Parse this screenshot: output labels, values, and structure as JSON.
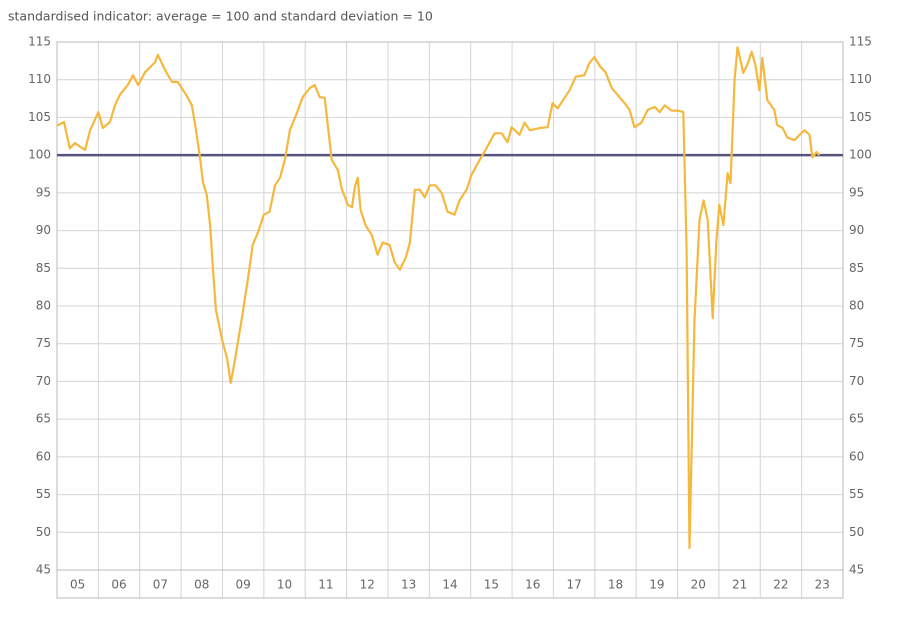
{
  "chart_data": {
    "type": "line",
    "title": "standardised indicator: average = 100 and standard deviation = 10",
    "xlim": [
      5,
      24
    ],
    "xticks": [
      {
        "value": 5.5,
        "label": "05"
      },
      {
        "value": 6.5,
        "label": "06"
      },
      {
        "value": 7.5,
        "label": "07"
      },
      {
        "value": 8.5,
        "label": "08"
      },
      {
        "value": 9.5,
        "label": "09"
      },
      {
        "value": 10.5,
        "label": "10"
      },
      {
        "value": 11.5,
        "label": "11"
      },
      {
        "value": 12.5,
        "label": "12"
      },
      {
        "value": 13.5,
        "label": "13"
      },
      {
        "value": 14.5,
        "label": "14"
      },
      {
        "value": 15.5,
        "label": "15"
      },
      {
        "value": 16.5,
        "label": "16"
      },
      {
        "value": 17.5,
        "label": "17"
      },
      {
        "value": 18.5,
        "label": "18"
      },
      {
        "value": 19.5,
        "label": "19"
      },
      {
        "value": 20.5,
        "label": "20"
      },
      {
        "value": 21.5,
        "label": "21"
      },
      {
        "value": 22.5,
        "label": "22"
      },
      {
        "value": 23.5,
        "label": "23"
      }
    ],
    "xgrid": [
      6,
      7,
      8,
      9,
      10,
      11,
      12,
      13,
      14,
      15,
      16,
      17,
      18,
      19,
      20,
      21,
      22,
      23
    ],
    "ylim": [
      45,
      115
    ],
    "yticks": [
      45,
      50,
      55,
      60,
      65,
      70,
      75,
      80,
      85,
      90,
      95,
      100,
      105,
      110,
      115
    ],
    "grid": true,
    "right_axis_labels": true,
    "reference_line": {
      "value": 100,
      "color": "#55557f"
    },
    "series": [
      {
        "color": "#f5b83d",
        "x": [
          5.0,
          5.17,
          5.31,
          5.43,
          5.68,
          5.8,
          6.0,
          6.11,
          6.28,
          6.4,
          6.52,
          6.71,
          6.84,
          6.96,
          7.13,
          7.37,
          7.44,
          7.61,
          7.78,
          7.92,
          8.12,
          8.26,
          8.36,
          8.45,
          8.53,
          8.62,
          8.7,
          8.77,
          8.84,
          8.99,
          9.11,
          9.2,
          9.3,
          9.47,
          9.61,
          9.73,
          9.86,
          10.0,
          10.14,
          10.27,
          10.39,
          10.51,
          10.63,
          10.8,
          10.94,
          11.11,
          11.23,
          11.35,
          11.47,
          11.64,
          11.79,
          11.88,
          12.03,
          12.13,
          12.2,
          12.27,
          12.34,
          12.46,
          12.61,
          12.75,
          12.87,
          13.04,
          13.16,
          13.29,
          13.43,
          13.53,
          13.65,
          13.77,
          13.89,
          14.01,
          14.15,
          14.3,
          14.44,
          14.61,
          14.73,
          14.9,
          15.02,
          15.22,
          15.36,
          15.46,
          15.58,
          15.75,
          15.89,
          15.99,
          16.18,
          16.3,
          16.43,
          16.67,
          16.86,
          16.98,
          17.1,
          17.27,
          17.39,
          17.54,
          17.75,
          17.87,
          17.99,
          18.12,
          18.26,
          18.41,
          18.55,
          18.72,
          18.84,
          18.96,
          19.13,
          19.28,
          19.45,
          19.57,
          19.69,
          19.86,
          20.0,
          20.14,
          20.22,
          20.29,
          20.41,
          20.53,
          20.63,
          20.73,
          20.85,
          20.94,
          21.01,
          21.11,
          21.21,
          21.28,
          21.38,
          21.45,
          21.59,
          21.69,
          21.79,
          21.88,
          21.98,
          22.05,
          22.17,
          22.34,
          22.41,
          22.54,
          22.66,
          22.83,
          22.95,
          23.07,
          23.19,
          23.26,
          23.36,
          23.43
        ],
        "values": [
          103.9,
          104.4,
          100.9,
          101.6,
          100.7,
          103.3,
          105.7,
          103.6,
          104.4,
          106.6,
          108,
          109.3,
          110.6,
          109.3,
          111,
          112.3,
          113.3,
          111.3,
          109.7,
          109.7,
          108,
          106.6,
          103.3,
          100,
          96.4,
          94.7,
          90.7,
          84.8,
          79.5,
          75.5,
          73.1,
          69.8,
          72.8,
          78.4,
          83.4,
          88.1,
          89.8,
          92.1,
          92.5,
          96,
          97,
          99.4,
          103.3,
          105.6,
          107.7,
          108.9,
          109.3,
          107.7,
          107.6,
          99.4,
          98,
          95.6,
          93.4,
          93.1,
          95.8,
          97,
          92.7,
          90.7,
          89.4,
          86.8,
          88.4,
          88.1,
          85.8,
          84.8,
          86.4,
          88.4,
          95.4,
          95.4,
          94.4,
          96,
          96,
          95,
          92.5,
          92.1,
          94,
          95.4,
          97.4,
          99.4,
          100.7,
          101.7,
          102.9,
          102.9,
          101.7,
          103.7,
          102.7,
          104.3,
          103.3,
          103.6,
          103.7,
          106.9,
          106.2,
          107.6,
          108.6,
          110.4,
          110.6,
          112.2,
          113,
          111.8,
          111,
          108.9,
          108,
          106.9,
          106,
          103.7,
          104.3,
          106,
          106.4,
          105.7,
          106.6,
          105.9,
          105.9,
          105.7,
          87.4,
          47.9,
          78.1,
          91.4,
          94,
          91.4,
          78.4,
          88.7,
          93.4,
          90.7,
          97.6,
          96.3,
          110,
          114.3,
          110.9,
          112,
          113.7,
          112,
          108.6,
          112.9,
          107.3,
          106,
          104,
          103.6,
          102.3,
          102,
          102.7,
          103.3,
          102.7,
          99.7,
          100.4,
          100
        ]
      }
    ]
  }
}
